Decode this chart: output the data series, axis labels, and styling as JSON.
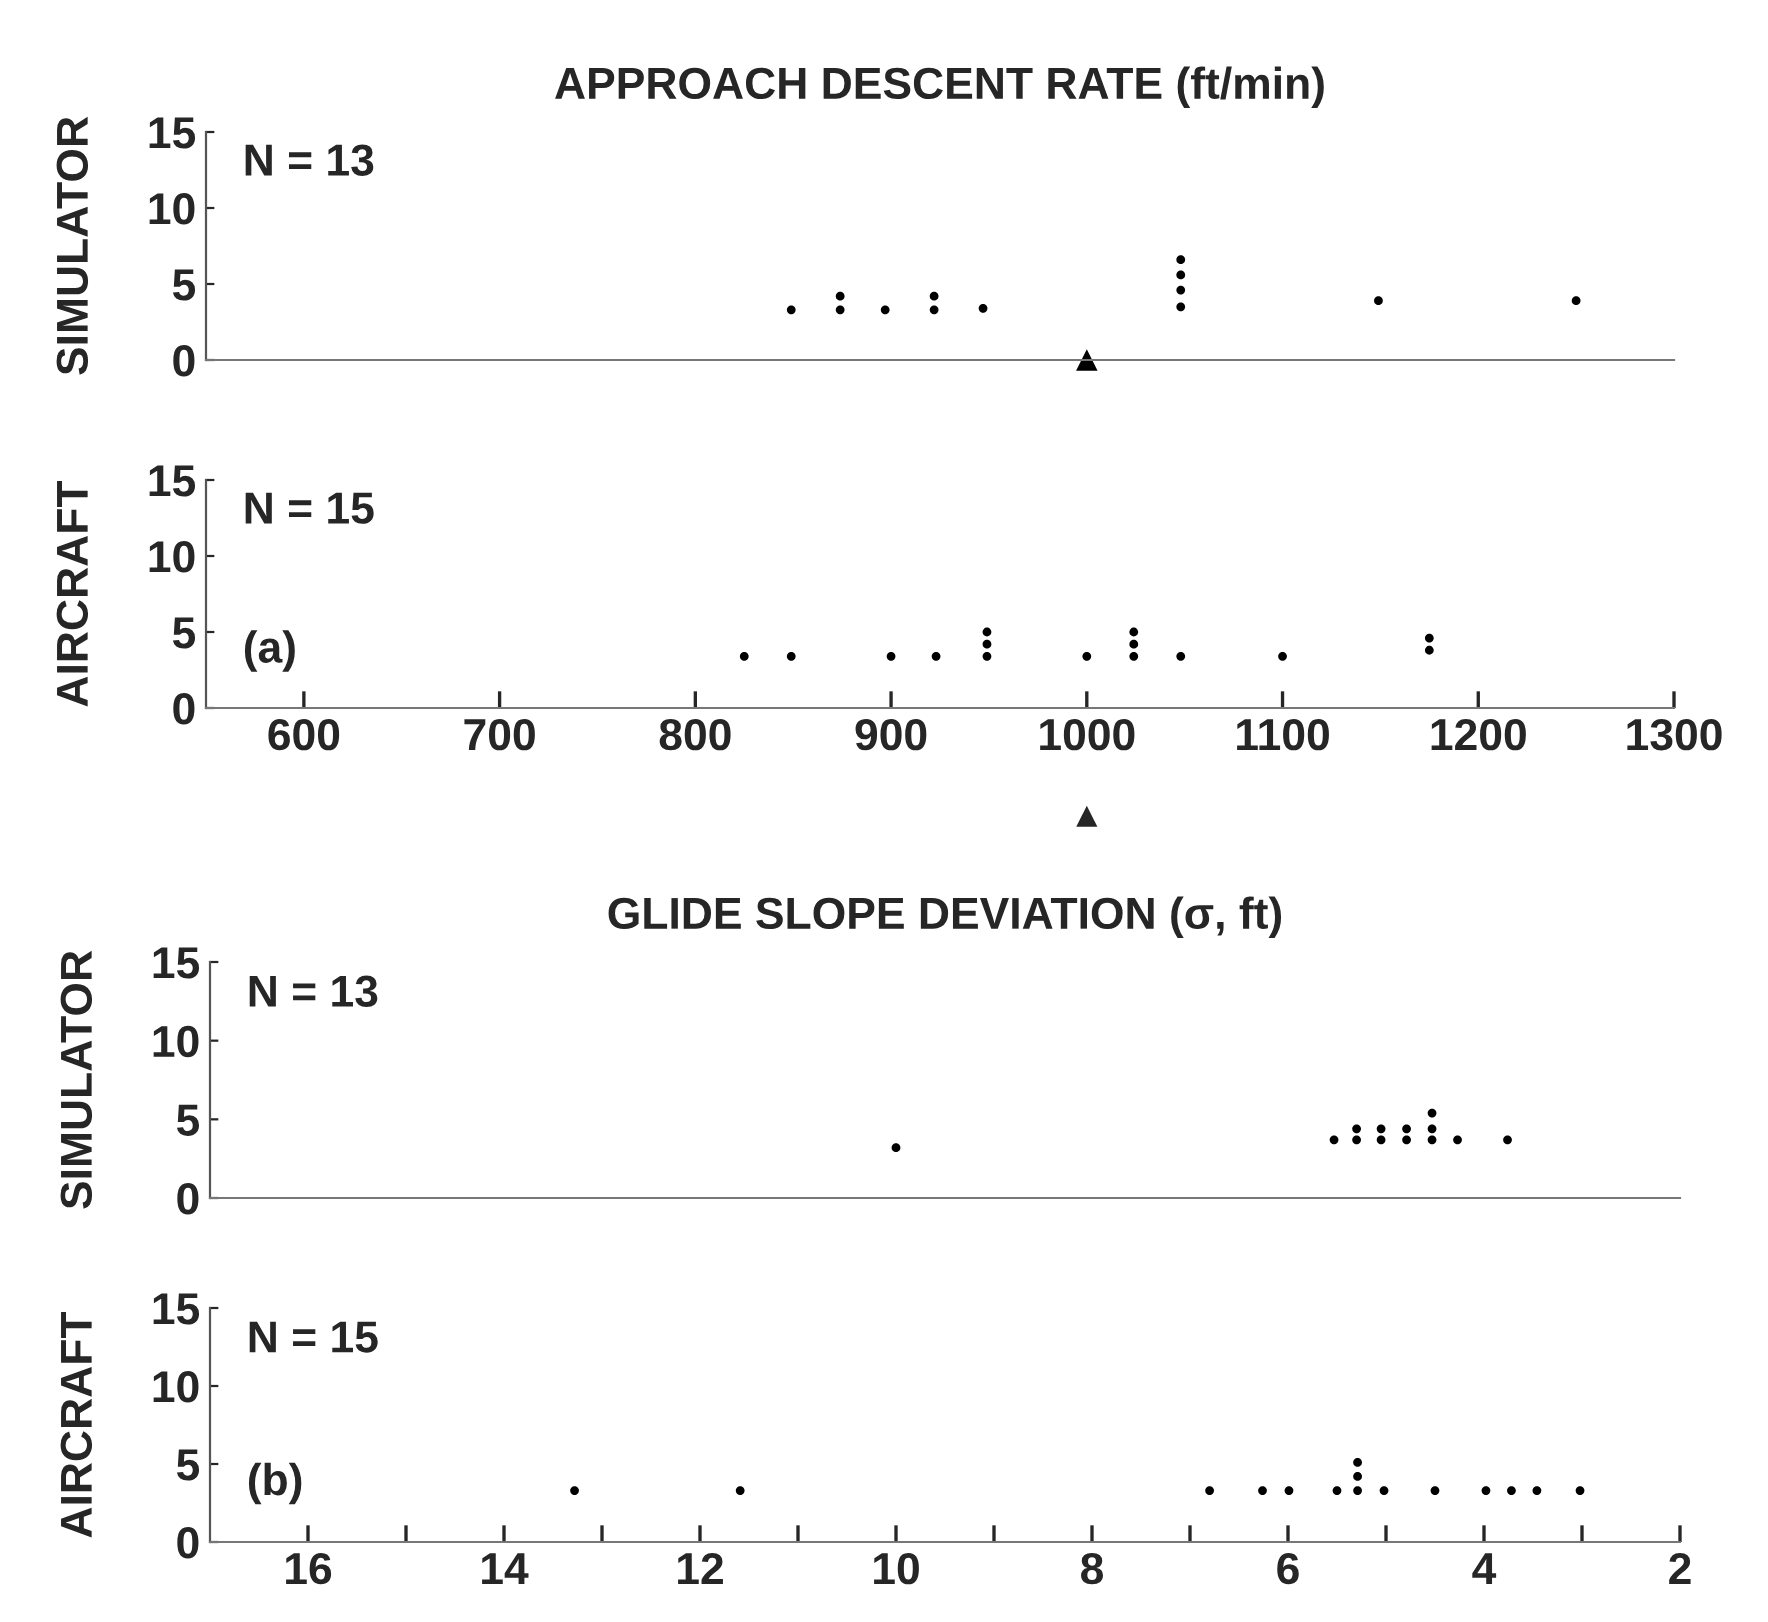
{
  "chart_data": [
    {
      "type": "scatter",
      "title": "APPROACH DESCENT RATE (ft/min)",
      "ylabel": "SIMULATOR",
      "annotations": [
        "N = 13"
      ],
      "xlim": [
        550,
        1300
      ],
      "xticks": [
        600,
        700,
        800,
        900,
        1000,
        1100,
        1200,
        1300
      ],
      "ylim": [
        0,
        15
      ],
      "yticks": [
        0,
        5,
        10,
        15
      ],
      "tick_labels": "y",
      "grid": false,
      "legend": false,
      "marker": "circle",
      "series": [
        {
          "color": "#000000",
          "x": [
            849,
            874,
            874,
            897,
            922,
            922,
            947,
            1048,
            1048,
            1048,
            1048,
            1149,
            1250
          ],
          "values": [
            3.3,
            3.3,
            4.2,
            3.3,
            3.3,
            4.2,
            3.4,
            3.5,
            4.6,
            5.6,
            6.6,
            3.9,
            3.9
          ]
        },
        {
          "color": "#000000",
          "marker": "triangle",
          "x": [
            1000
          ],
          "values": [
            0
          ]
        }
      ]
    },
    {
      "type": "scatter",
      "ylabel": "AIRCRAFT",
      "annotations": [
        "N = 15",
        "(a)",
        "▲"
      ],
      "xlim": [
        550,
        1300
      ],
      "xticks": [
        600,
        700,
        800,
        900,
        1000,
        1100,
        1200,
        1300
      ],
      "ylim": [
        0,
        15
      ],
      "yticks": [
        0,
        5,
        10,
        15
      ],
      "grid": false,
      "legend": false,
      "marker": "circle",
      "series": [
        {
          "color": "#000000",
          "x": [
            825,
            849,
            900,
            923,
            949,
            949,
            949,
            1000,
            1024,
            1024,
            1024,
            1048,
            1100,
            1175,
            1175
          ],
          "values": [
            3.4,
            3.4,
            3.4,
            3.4,
            3.4,
            4.2,
            5.0,
            3.4,
            3.4,
            4.2,
            5.0,
            3.4,
            3.4,
            3.8,
            4.6
          ]
        }
      ]
    },
    {
      "type": "scatter",
      "title": "GLIDE SLOPE DEVIATION (σ, ft)",
      "ylabel": "SIMULATOR",
      "annotations": [
        "N = 13"
      ],
      "xlim": [
        17,
        2
      ],
      "xticks": [
        16,
        14,
        12,
        10,
        8,
        6,
        4,
        2
      ],
      "ylim": [
        0,
        15
      ],
      "yticks": [
        0,
        5,
        10,
        15
      ],
      "tick_labels": "y",
      "grid": false,
      "legend": false,
      "marker": "circle",
      "series": [
        {
          "color": "#000000",
          "x": [
            10.0,
            5.53,
            5.3,
            5.3,
            5.05,
            5.05,
            4.79,
            4.79,
            4.53,
            4.53,
            4.53,
            4.27,
            3.76
          ],
          "values": [
            3.2,
            3.7,
            3.7,
            4.4,
            3.7,
            4.4,
            3.7,
            4.4,
            3.7,
            4.4,
            5.4,
            3.7,
            3.7
          ]
        }
      ]
    },
    {
      "type": "scatter",
      "ylabel": "AIRCRAFT",
      "annotations": [
        "N = 15",
        "(b)"
      ],
      "xlim": [
        17,
        2
      ],
      "xticks": [
        16,
        {
          "value": 15,
          "label": null
        },
        14,
        {
          "value": 13,
          "label": null
        },
        12,
        {
          "value": 11,
          "label": null
        },
        10,
        {
          "value": 9,
          "label": null
        },
        8,
        {
          "value": 7,
          "label": null
        },
        6,
        {
          "value": 5,
          "label": null
        },
        4,
        {
          "value": 3,
          "label": null
        },
        2
      ],
      "ylim": [
        0,
        15
      ],
      "yticks": [
        0,
        5,
        10,
        15
      ],
      "grid": false,
      "legend": false,
      "marker": "circle",
      "series": [
        {
          "color": "#000000",
          "x": [
            13.28,
            11.59,
            6.8,
            6.26,
            5.99,
            5.5,
            5.29,
            5.29,
            5.29,
            5.02,
            4.5,
            3.98,
            3.72,
            3.46,
            3.02
          ],
          "values": [
            3.3,
            3.3,
            3.3,
            3.3,
            3.3,
            3.3,
            3.3,
            4.2,
            5.1,
            3.3,
            3.3,
            3.3,
            3.3,
            3.3,
            3.3
          ]
        }
      ]
    }
  ]
}
